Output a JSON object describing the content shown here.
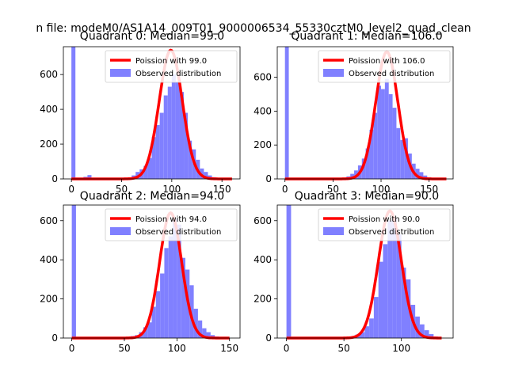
{
  "figure": {
    "suptitle": "n file: modeM0/AS1A14_009T01_9000006534_55330cztM0_level2_quad_clean",
    "colors": {
      "hist": "#8080ff",
      "curve": "#ff0000",
      "axes": "#000000"
    }
  },
  "chart_data": [
    {
      "type": "bar",
      "title": "Quadrant 0: Median=99.0",
      "median": 99.0,
      "xlim": [
        -8,
        168
      ],
      "ylim": [
        0,
        760
      ],
      "xticks": [
        0,
        50,
        100,
        150
      ],
      "yticks": [
        0,
        200,
        400,
        600
      ],
      "bin_width": 4,
      "zero_bin_height": 760,
      "hist": [
        [
          12,
          12
        ],
        [
          16,
          22
        ],
        [
          56,
          8
        ],
        [
          60,
          20
        ],
        [
          64,
          40
        ],
        [
          68,
          55
        ],
        [
          72,
          75
        ],
        [
          76,
          120
        ],
        [
          80,
          240
        ],
        [
          84,
          310
        ],
        [
          88,
          380
        ],
        [
          92,
          480
        ],
        [
          96,
          530
        ],
        [
          100,
          600
        ],
        [
          104,
          560
        ],
        [
          108,
          500
        ],
        [
          112,
          380
        ],
        [
          116,
          220
        ],
        [
          120,
          170
        ],
        [
          124,
          110
        ],
        [
          128,
          60
        ],
        [
          132,
          40
        ],
        [
          136,
          20
        ],
        [
          140,
          10
        ],
        [
          144,
          4
        ]
      ],
      "legend": [
        "Poission with 99.0",
        "Observed distribution"
      ],
      "curve": {
        "mu": 99.0,
        "sigma": 11.5,
        "peak": 740,
        "x_range": [
          0,
          160
        ]
      }
    },
    {
      "type": "bar",
      "title": "Quadrant 1: Median=106.0",
      "median": 106.0,
      "xlim": [
        -8,
        175
      ],
      "ylim": [
        0,
        780
      ],
      "xticks": [
        0,
        50,
        100,
        150
      ],
      "yticks": [
        0,
        200,
        400,
        600
      ],
      "bin_width": 4,
      "zero_bin_height": 780,
      "hist": [
        [
          64,
          15
        ],
        [
          68,
          30
        ],
        [
          72,
          50
        ],
        [
          76,
          80
        ],
        [
          80,
          120
        ],
        [
          84,
          180
        ],
        [
          88,
          290
        ],
        [
          92,
          390
        ],
        [
          96,
          550
        ],
        [
          100,
          530
        ],
        [
          104,
          590
        ],
        [
          108,
          500
        ],
        [
          112,
          420
        ],
        [
          116,
          300
        ],
        [
          120,
          230
        ],
        [
          124,
          240
        ],
        [
          128,
          150
        ],
        [
          132,
          90
        ],
        [
          136,
          60
        ],
        [
          140,
          40
        ],
        [
          144,
          20
        ],
        [
          148,
          10
        ]
      ],
      "legend": [
        "Poission with 106.0",
        "Observed distribution"
      ],
      "curve": {
        "mu": 106.0,
        "sigma": 11.5,
        "peak": 750,
        "x_range": [
          0,
          168
        ]
      }
    },
    {
      "type": "bar",
      "title": "Quadrant 2: Median=94.0",
      "median": 94.0,
      "xlim": [
        -8,
        160
      ],
      "ylim": [
        0,
        680
      ],
      "xticks": [
        0,
        50,
        100,
        150
      ],
      "yticks": [
        0,
        200,
        400,
        600
      ],
      "bin_width": 4,
      "zero_bin_height": 680,
      "hist": [
        [
          56,
          10
        ],
        [
          60,
          15
        ],
        [
          64,
          30
        ],
        [
          68,
          55
        ],
        [
          72,
          80
        ],
        [
          76,
          160
        ],
        [
          80,
          240
        ],
        [
          84,
          330
        ],
        [
          88,
          460
        ],
        [
          92,
          520
        ],
        [
          96,
          610
        ],
        [
          100,
          580
        ],
        [
          104,
          410
        ],
        [
          108,
          350
        ],
        [
          112,
          270
        ],
        [
          116,
          150
        ],
        [
          120,
          90
        ],
        [
          124,
          50
        ],
        [
          128,
          30
        ],
        [
          132,
          15
        ],
        [
          136,
          8
        ]
      ],
      "legend": [
        "Poission with 94.0",
        "Observed distribution"
      ],
      "curve": {
        "mu": 94.0,
        "sigma": 10.5,
        "peak": 640,
        "x_range": [
          0,
          150
        ]
      }
    },
    {
      "type": "bar",
      "title": "Quadrant 3: Median=90.0",
      "median": 90.0,
      "xlim": [
        -8,
        145
      ],
      "ylim": [
        0,
        680
      ],
      "xticks": [
        0,
        50,
        100
      ],
      "yticks": [
        0,
        200,
        400,
        600
      ],
      "bin_width": 4,
      "zero_bin_height": 680,
      "hist": [
        [
          56,
          10
        ],
        [
          60,
          18
        ],
        [
          64,
          30
        ],
        [
          68,
          60
        ],
        [
          72,
          100
        ],
        [
          76,
          210
        ],
        [
          80,
          390
        ],
        [
          84,
          480
        ],
        [
          88,
          600
        ],
        [
          92,
          610
        ],
        [
          96,
          530
        ],
        [
          100,
          360
        ],
        [
          104,
          300
        ],
        [
          108,
          170
        ],
        [
          112,
          110
        ],
        [
          116,
          70
        ],
        [
          120,
          40
        ],
        [
          124,
          20
        ],
        [
          128,
          8
        ]
      ],
      "legend": [
        "Poission with 90.0",
        "Observed distribution"
      ],
      "curve": {
        "mu": 90.0,
        "sigma": 10.0,
        "peak": 650,
        "x_range": [
          0,
          135
        ]
      }
    }
  ]
}
